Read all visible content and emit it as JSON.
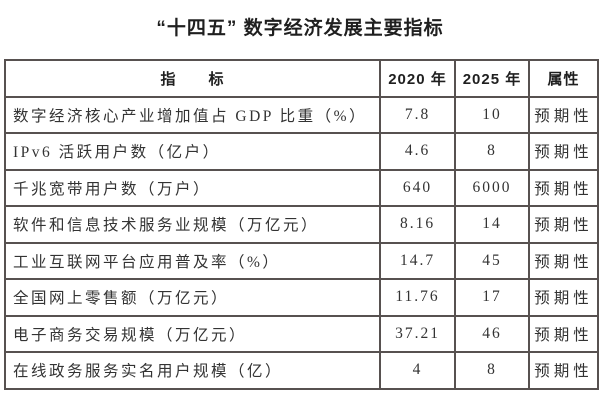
{
  "page": {
    "background": "#ffffff",
    "border_color": "#575150",
    "title_color": "#1f1f1f",
    "body_text_color": "#333333"
  },
  "title": "“十四五” 数字经济发展主要指标",
  "table": {
    "headers": {
      "indicator": "指　　标",
      "y2020": "2020 年",
      "y2025": "2025 年",
      "attribute": "属性"
    },
    "rows": [
      {
        "indicator": "数字经济核心产业增加值占 GDP 比重（%）",
        "y2020": "7.8",
        "y2025": "10",
        "attribute": "预期性"
      },
      {
        "indicator": "IPv6 活跃用户数（亿户）",
        "y2020": "4.6",
        "y2025": "8",
        "attribute": "预期性"
      },
      {
        "indicator": "千兆宽带用户数（万户）",
        "y2020": "640",
        "y2025": "6000",
        "attribute": "预期性"
      },
      {
        "indicator": "软件和信息技术服务业规模（万亿元）",
        "y2020": "8.16",
        "y2025": "14",
        "attribute": "预期性"
      },
      {
        "indicator": "工业互联网平台应用普及率（%）",
        "y2020": "14.7",
        "y2025": "45",
        "attribute": "预期性"
      },
      {
        "indicator": "全国网上零售额（万亿元）",
        "y2020": "11.76",
        "y2025": "17",
        "attribute": "预期性"
      },
      {
        "indicator": "电子商务交易规模（万亿元）",
        "y2020": "37.21",
        "y2025": "46",
        "attribute": "预期性"
      },
      {
        "indicator": "在线政务服务实名用户规模（亿）",
        "y2020": "4",
        "y2025": "8",
        "attribute": "预期性"
      }
    ]
  }
}
